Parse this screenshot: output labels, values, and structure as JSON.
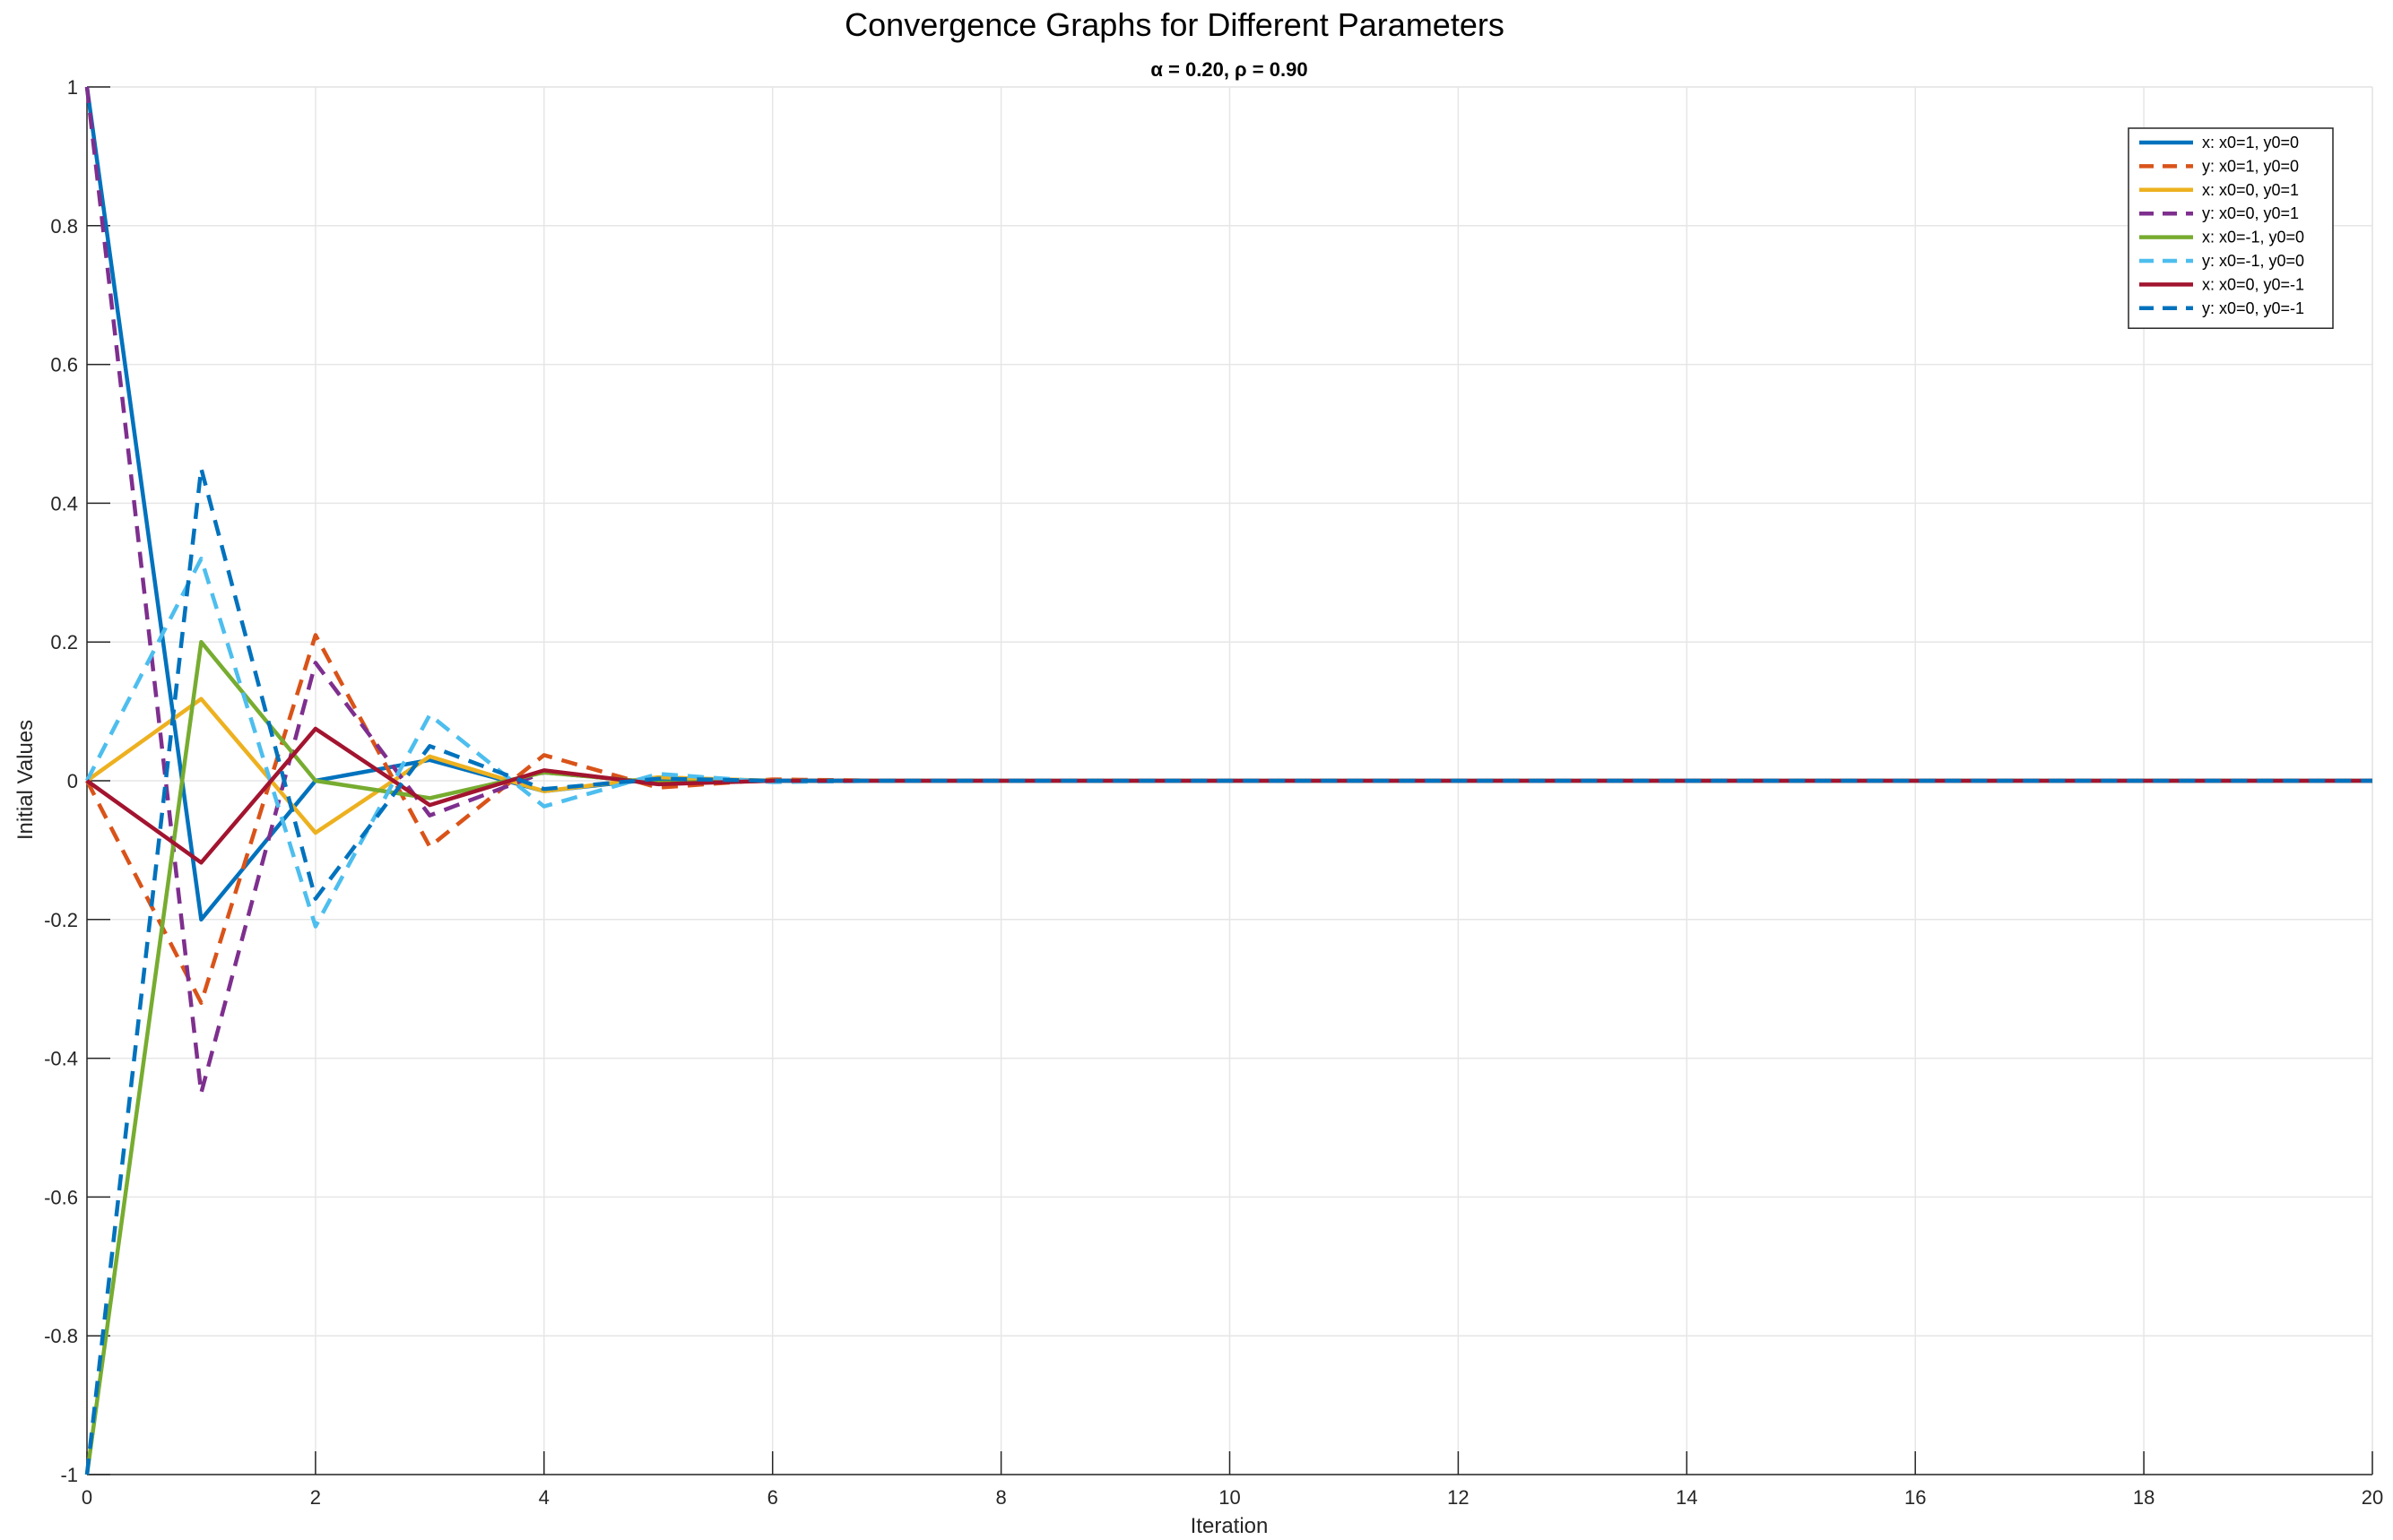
{
  "chart_data": {
    "type": "line",
    "title": "Convergence Graphs for Different Parameters",
    "subtitle": "α = 0.20, ρ = 0.90",
    "xlabel": "Iteration",
    "ylabel": "Initial Values",
    "xlim": [
      0,
      20
    ],
    "ylim": [
      -1,
      1
    ],
    "xticks": [
      0,
      2,
      4,
      6,
      8,
      10,
      12,
      14,
      16,
      18,
      20
    ],
    "yticks": [
      -1,
      -0.8,
      -0.6,
      -0.4,
      -0.2,
      0,
      0.2,
      0.4,
      0.6,
      0.8,
      1
    ],
    "ytick_labels": [
      "-1",
      "-0.8",
      "-0.6",
      "-0.4",
      "-0.2",
      "0",
      "0.2",
      "0.4",
      "0.6",
      "0.8",
      "1"
    ],
    "grid": true,
    "legend_position": "top-right",
    "x": [
      0,
      1,
      2,
      3,
      4,
      5,
      6,
      7,
      8,
      9,
      10,
      11,
      12,
      13,
      14,
      15,
      16,
      17,
      18,
      19,
      20
    ],
    "series": [
      {
        "name": "x: x0=1, y0=0",
        "color": "#0072BD",
        "dash": "solid",
        "values": [
          1,
          -0.2,
          0,
          0.03,
          -0.015,
          0.003,
          0,
          0,
          0,
          0,
          0,
          0,
          0,
          0,
          0,
          0,
          0,
          0,
          0,
          0,
          0
        ]
      },
      {
        "name": "y: x0=1, y0=0",
        "color": "#D95319",
        "dash": "dashed",
        "values": [
          0,
          -0.32,
          0.21,
          -0.095,
          0.037,
          -0.01,
          0.002,
          0,
          0,
          0,
          0,
          0,
          0,
          0,
          0,
          0,
          0,
          0,
          0,
          0,
          0
        ]
      },
      {
        "name": "x: x0=0, y0=1",
        "color": "#EDB120",
        "dash": "solid",
        "values": [
          0,
          0.118,
          -0.075,
          0.035,
          -0.015,
          0.005,
          0,
          0,
          0,
          0,
          0,
          0,
          0,
          0,
          0,
          0,
          0,
          0,
          0,
          0,
          0
        ]
      },
      {
        "name": "y: x0=0, y0=1",
        "color": "#7E2F8E",
        "dash": "dashed",
        "values": [
          1,
          -0.45,
          0.17,
          -0.05,
          0.012,
          -0.003,
          0,
          0,
          0,
          0,
          0,
          0,
          0,
          0,
          0,
          0,
          0,
          0,
          0,
          0,
          0
        ]
      },
      {
        "name": "x: x0=-1, y0=0",
        "color": "#77AC30",
        "dash": "solid",
        "values": [
          -1,
          0.2,
          0,
          -0.025,
          0.012,
          -0.003,
          0,
          0,
          0,
          0,
          0,
          0,
          0,
          0,
          0,
          0,
          0,
          0,
          0,
          0,
          0
        ]
      },
      {
        "name": "y: x0=-1, y0=0",
        "color": "#4DBEEE",
        "dash": "dashed",
        "values": [
          0,
          0.32,
          -0.21,
          0.095,
          -0.037,
          0.01,
          -0.002,
          0,
          0,
          0,
          0,
          0,
          0,
          0,
          0,
          0,
          0,
          0,
          0,
          0,
          0
        ]
      },
      {
        "name": "x: x0=0, y0=-1",
        "color": "#A2142F",
        "dash": "solid",
        "values": [
          0,
          -0.118,
          0.075,
          -0.035,
          0.015,
          -0.005,
          0,
          0,
          0,
          0,
          0,
          0,
          0,
          0,
          0,
          0,
          0,
          0,
          0,
          0,
          0
        ]
      },
      {
        "name": "y: x0=0, y0=-1",
        "color": "#0072BD",
        "dash": "dashed",
        "values": [
          -1,
          0.45,
          -0.17,
          0.05,
          -0.012,
          0.003,
          0,
          0,
          0,
          0,
          0,
          0,
          0,
          0,
          0,
          0,
          0,
          0,
          0,
          0,
          0
        ]
      }
    ]
  }
}
